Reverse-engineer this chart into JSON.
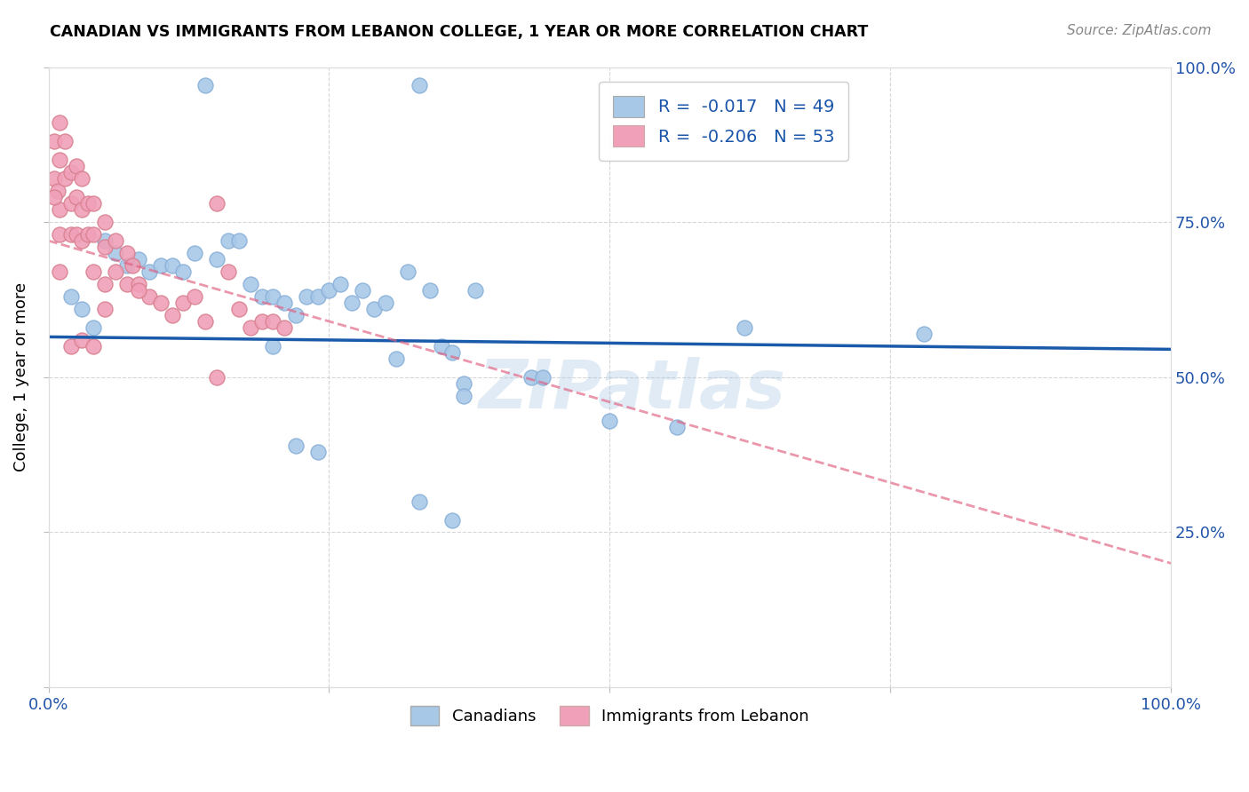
{
  "title": "CANADIAN VS IMMIGRANTS FROM LEBANON COLLEGE, 1 YEAR OR MORE CORRELATION CHART",
  "source": "Source: ZipAtlas.com",
  "ylabel": "College, 1 year or more",
  "xlim": [
    0,
    1
  ],
  "ylim": [
    0,
    1
  ],
  "canadian_color": "#a8c8e8",
  "immigrant_color": "#f0a0b8",
  "canadian_line_color": "#1a5aaa",
  "immigrant_line_color": "#e06080",
  "legend_R_canadian": "-0.017",
  "legend_N_canadian": "49",
  "legend_R_immigrant": "-0.206",
  "legend_N_immigrant": "53",
  "watermark": "ZIPatlas",
  "background_color": "#ffffff",
  "grid_color": "#cccccc",
  "canadian_x": [
    0.14,
    0.33,
    0.02,
    0.03,
    0.04,
    0.05,
    0.06,
    0.07,
    0.08,
    0.09,
    0.1,
    0.11,
    0.12,
    0.13,
    0.15,
    0.16,
    0.17,
    0.18,
    0.19,
    0.2,
    0.21,
    0.22,
    0.23,
    0.24,
    0.25,
    0.26,
    0.27,
    0.28,
    0.29,
    0.3,
    0.31,
    0.32,
    0.34,
    0.35,
    0.36,
    0.37,
    0.38,
    0.43,
    0.44,
    0.5,
    0.56,
    0.62,
    0.78,
    0.33,
    0.36,
    0.22,
    0.24,
    0.37,
    0.2
  ],
  "canadian_y": [
    0.97,
    0.97,
    0.63,
    0.61,
    0.58,
    0.72,
    0.7,
    0.68,
    0.69,
    0.67,
    0.68,
    0.68,
    0.67,
    0.7,
    0.69,
    0.72,
    0.72,
    0.65,
    0.63,
    0.63,
    0.62,
    0.6,
    0.63,
    0.63,
    0.64,
    0.65,
    0.62,
    0.64,
    0.61,
    0.62,
    0.53,
    0.67,
    0.64,
    0.55,
    0.54,
    0.49,
    0.64,
    0.5,
    0.5,
    0.43,
    0.42,
    0.58,
    0.57,
    0.3,
    0.27,
    0.39,
    0.38,
    0.47,
    0.55
  ],
  "immigrant_x": [
    0.005,
    0.005,
    0.008,
    0.01,
    0.01,
    0.01,
    0.01,
    0.015,
    0.015,
    0.02,
    0.02,
    0.02,
    0.025,
    0.025,
    0.025,
    0.03,
    0.03,
    0.03,
    0.035,
    0.035,
    0.04,
    0.04,
    0.04,
    0.05,
    0.05,
    0.05,
    0.06,
    0.06,
    0.07,
    0.07,
    0.075,
    0.08,
    0.09,
    0.1,
    0.11,
    0.12,
    0.13,
    0.14,
    0.15,
    0.16,
    0.17,
    0.18,
    0.19,
    0.2,
    0.21,
    0.005,
    0.01,
    0.02,
    0.03,
    0.04,
    0.05,
    0.08,
    0.15
  ],
  "immigrant_y": [
    0.88,
    0.82,
    0.8,
    0.91,
    0.85,
    0.77,
    0.73,
    0.88,
    0.82,
    0.83,
    0.78,
    0.73,
    0.84,
    0.79,
    0.73,
    0.82,
    0.77,
    0.72,
    0.78,
    0.73,
    0.78,
    0.73,
    0.67,
    0.75,
    0.71,
    0.65,
    0.72,
    0.67,
    0.7,
    0.65,
    0.68,
    0.65,
    0.63,
    0.62,
    0.6,
    0.62,
    0.63,
    0.59,
    0.78,
    0.67,
    0.61,
    0.58,
    0.59,
    0.59,
    0.58,
    0.79,
    0.67,
    0.55,
    0.56,
    0.55,
    0.61,
    0.64,
    0.5
  ],
  "canadian_line_x": [
    0.0,
    1.0
  ],
  "canadian_line_y": [
    0.565,
    0.545
  ],
  "immigrant_line_x": [
    0.0,
    1.0
  ],
  "immigrant_line_y": [
    0.72,
    0.2
  ]
}
